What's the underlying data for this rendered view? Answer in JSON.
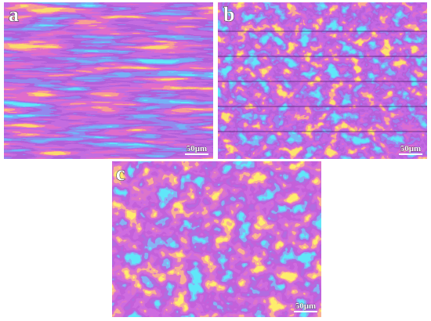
{
  "panels": [
    {
      "label": "a",
      "scale_bar": "50μm"
    },
    {
      "label": "b",
      "scale_bar": "50μm"
    },
    {
      "label": "c",
      "scale_bar": "50μm"
    }
  ]
}
